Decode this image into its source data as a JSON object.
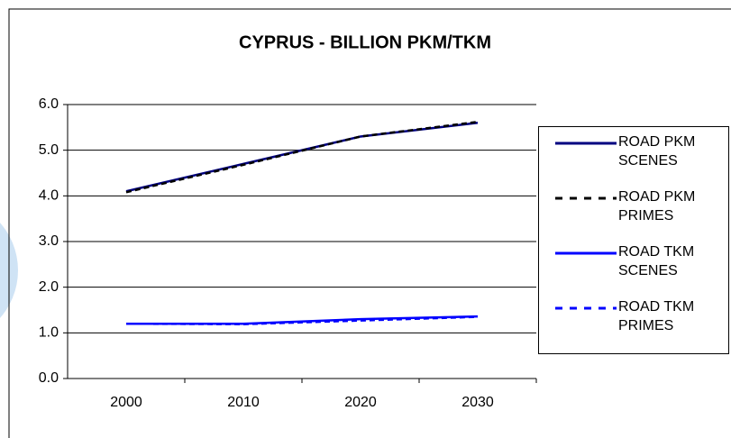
{
  "chart_data": {
    "type": "line",
    "title": "CYPRUS - BILLION PKM/TKM",
    "categories": [
      "2000",
      "2010",
      "2020",
      "2030"
    ],
    "series": [
      {
        "name": "ROAD PKM SCENES",
        "color": "#000080",
        "dashed": false,
        "values": [
          4.1,
          4.7,
          5.3,
          5.6
        ]
      },
      {
        "name": "ROAD PKM PRIMES",
        "color": "#000000",
        "dashed": true,
        "values": [
          4.08,
          4.68,
          5.3,
          5.62
        ]
      },
      {
        "name": "ROAD TKM SCENES",
        "color": "#0000ff",
        "dashed": false,
        "values": [
          1.2,
          1.2,
          1.3,
          1.36
        ]
      },
      {
        "name": "ROAD TKM PRIMES",
        "color": "#0000ff",
        "dashed": true,
        "values": [
          1.2,
          1.19,
          1.27,
          1.35
        ]
      }
    ],
    "ylim": [
      0,
      6
    ],
    "yticks": [
      {
        "value": 0,
        "label": "0.0"
      },
      {
        "value": 1,
        "label": "1.0"
      },
      {
        "value": 2,
        "label": "2.0"
      },
      {
        "value": 3,
        "label": "3.0"
      },
      {
        "value": 4,
        "label": "4.0"
      },
      {
        "value": 5,
        "label": "5.0"
      },
      {
        "value": 6,
        "label": "6.0"
      }
    ],
    "grid": true
  }
}
